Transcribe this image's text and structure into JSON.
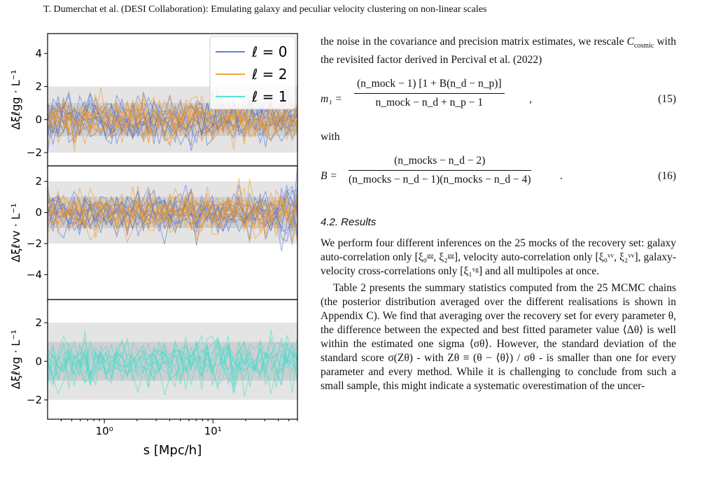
{
  "running_head": "T. Dumerchat et al. (DESI Collaboration): Emulating galaxy and peculiar velocity clustering on non-linear scales",
  "figure": {
    "legend": [
      {
        "label": "ℓ = 0",
        "color": "#4a6fd6"
      },
      {
        "label": "ℓ = 2",
        "color": "#f0961f"
      },
      {
        "label": "ℓ = 1",
        "color": "#40dccc"
      }
    ],
    "xlabel": "s [Mpc/h]",
    "xticks": [
      "10⁰",
      "10¹"
    ],
    "panels": [
      {
        "ylabel": "Δξℓgg · L⁻¹",
        "yticks": [
          "4",
          "2",
          "0",
          "−2"
        ],
        "ylim": [
          -2.8,
          5.2
        ],
        "colors": [
          "#4a6fd6",
          "#f0961f"
        ]
      },
      {
        "ylabel": "Δξℓvv · L⁻¹",
        "yticks": [
          "2",
          "0",
          "−2",
          "−4"
        ],
        "ylim": [
          -5.6,
          3.0
        ],
        "colors": [
          "#4a6fd6",
          "#f0961f"
        ]
      },
      {
        "ylabel": "Δξℓvg · L⁻¹",
        "yticks": [
          "2",
          "0",
          "−2"
        ],
        "ylim": [
          -3.0,
          3.2
        ],
        "colors": [
          "#40dccc"
        ]
      }
    ]
  },
  "text": {
    "p1_a": "the noise in the covariance and precision matrix estimates, we rescale ",
    "p1_sym": "C",
    "p1_sub": "cosmic",
    "p1_b": " with the revisited factor derived in Percival et al. (2022)",
    "eq15_lhs": "m₁ =",
    "eq15_num": "(n_mock − 1) [1 + B(n_d − n_p)]",
    "eq15_den": "n_mock − n_d + n_p − 1",
    "eq15_tail": ",",
    "eq15_number": "(15)",
    "with": "with",
    "eq16_lhs": "B =",
    "eq16_num": "(n_mocks − n_d − 2)",
    "eq16_den": "(n_mocks − n_d − 1)(n_mocks − n_d − 4)",
    "eq16_tail": ".",
    "eq16_number": "(16)",
    "section": "4.2. Results",
    "p2": "We perform four different inferences on the 25 mocks of the recovery set: galaxy auto-correlation only [ξ₀ᵍᵍ, ξ₂ᵍᵍ], velocity auto-correlation only [ξ₀ᵛᵛ, ξ₂ᵛᵛ], galaxy-velocity cross-correlations only [ξ₁ᵛᵍ] and all multipoles at once.",
    "p3": "Table 2 presents the summary statistics computed from the 25 MCMC chains (the posterior distribution averaged over the different realisations is shown in Appendix C). We find that averaging over the recovery set for every parameter θ, the difference between the expected and best fitted parameter value ⟨Δθ⟩ is well within the estimated one sigma ⟨σθ⟩. However, the standard deviation of the standard score σ(Zθ) - with Zθ ≡ (θ − ⟨θ⟩) / σθ - is smaller than one for every parameter and every method. While it is challenging to conclude from such a small sample, this might indicate a systematic overestimation of the uncer-"
  }
}
